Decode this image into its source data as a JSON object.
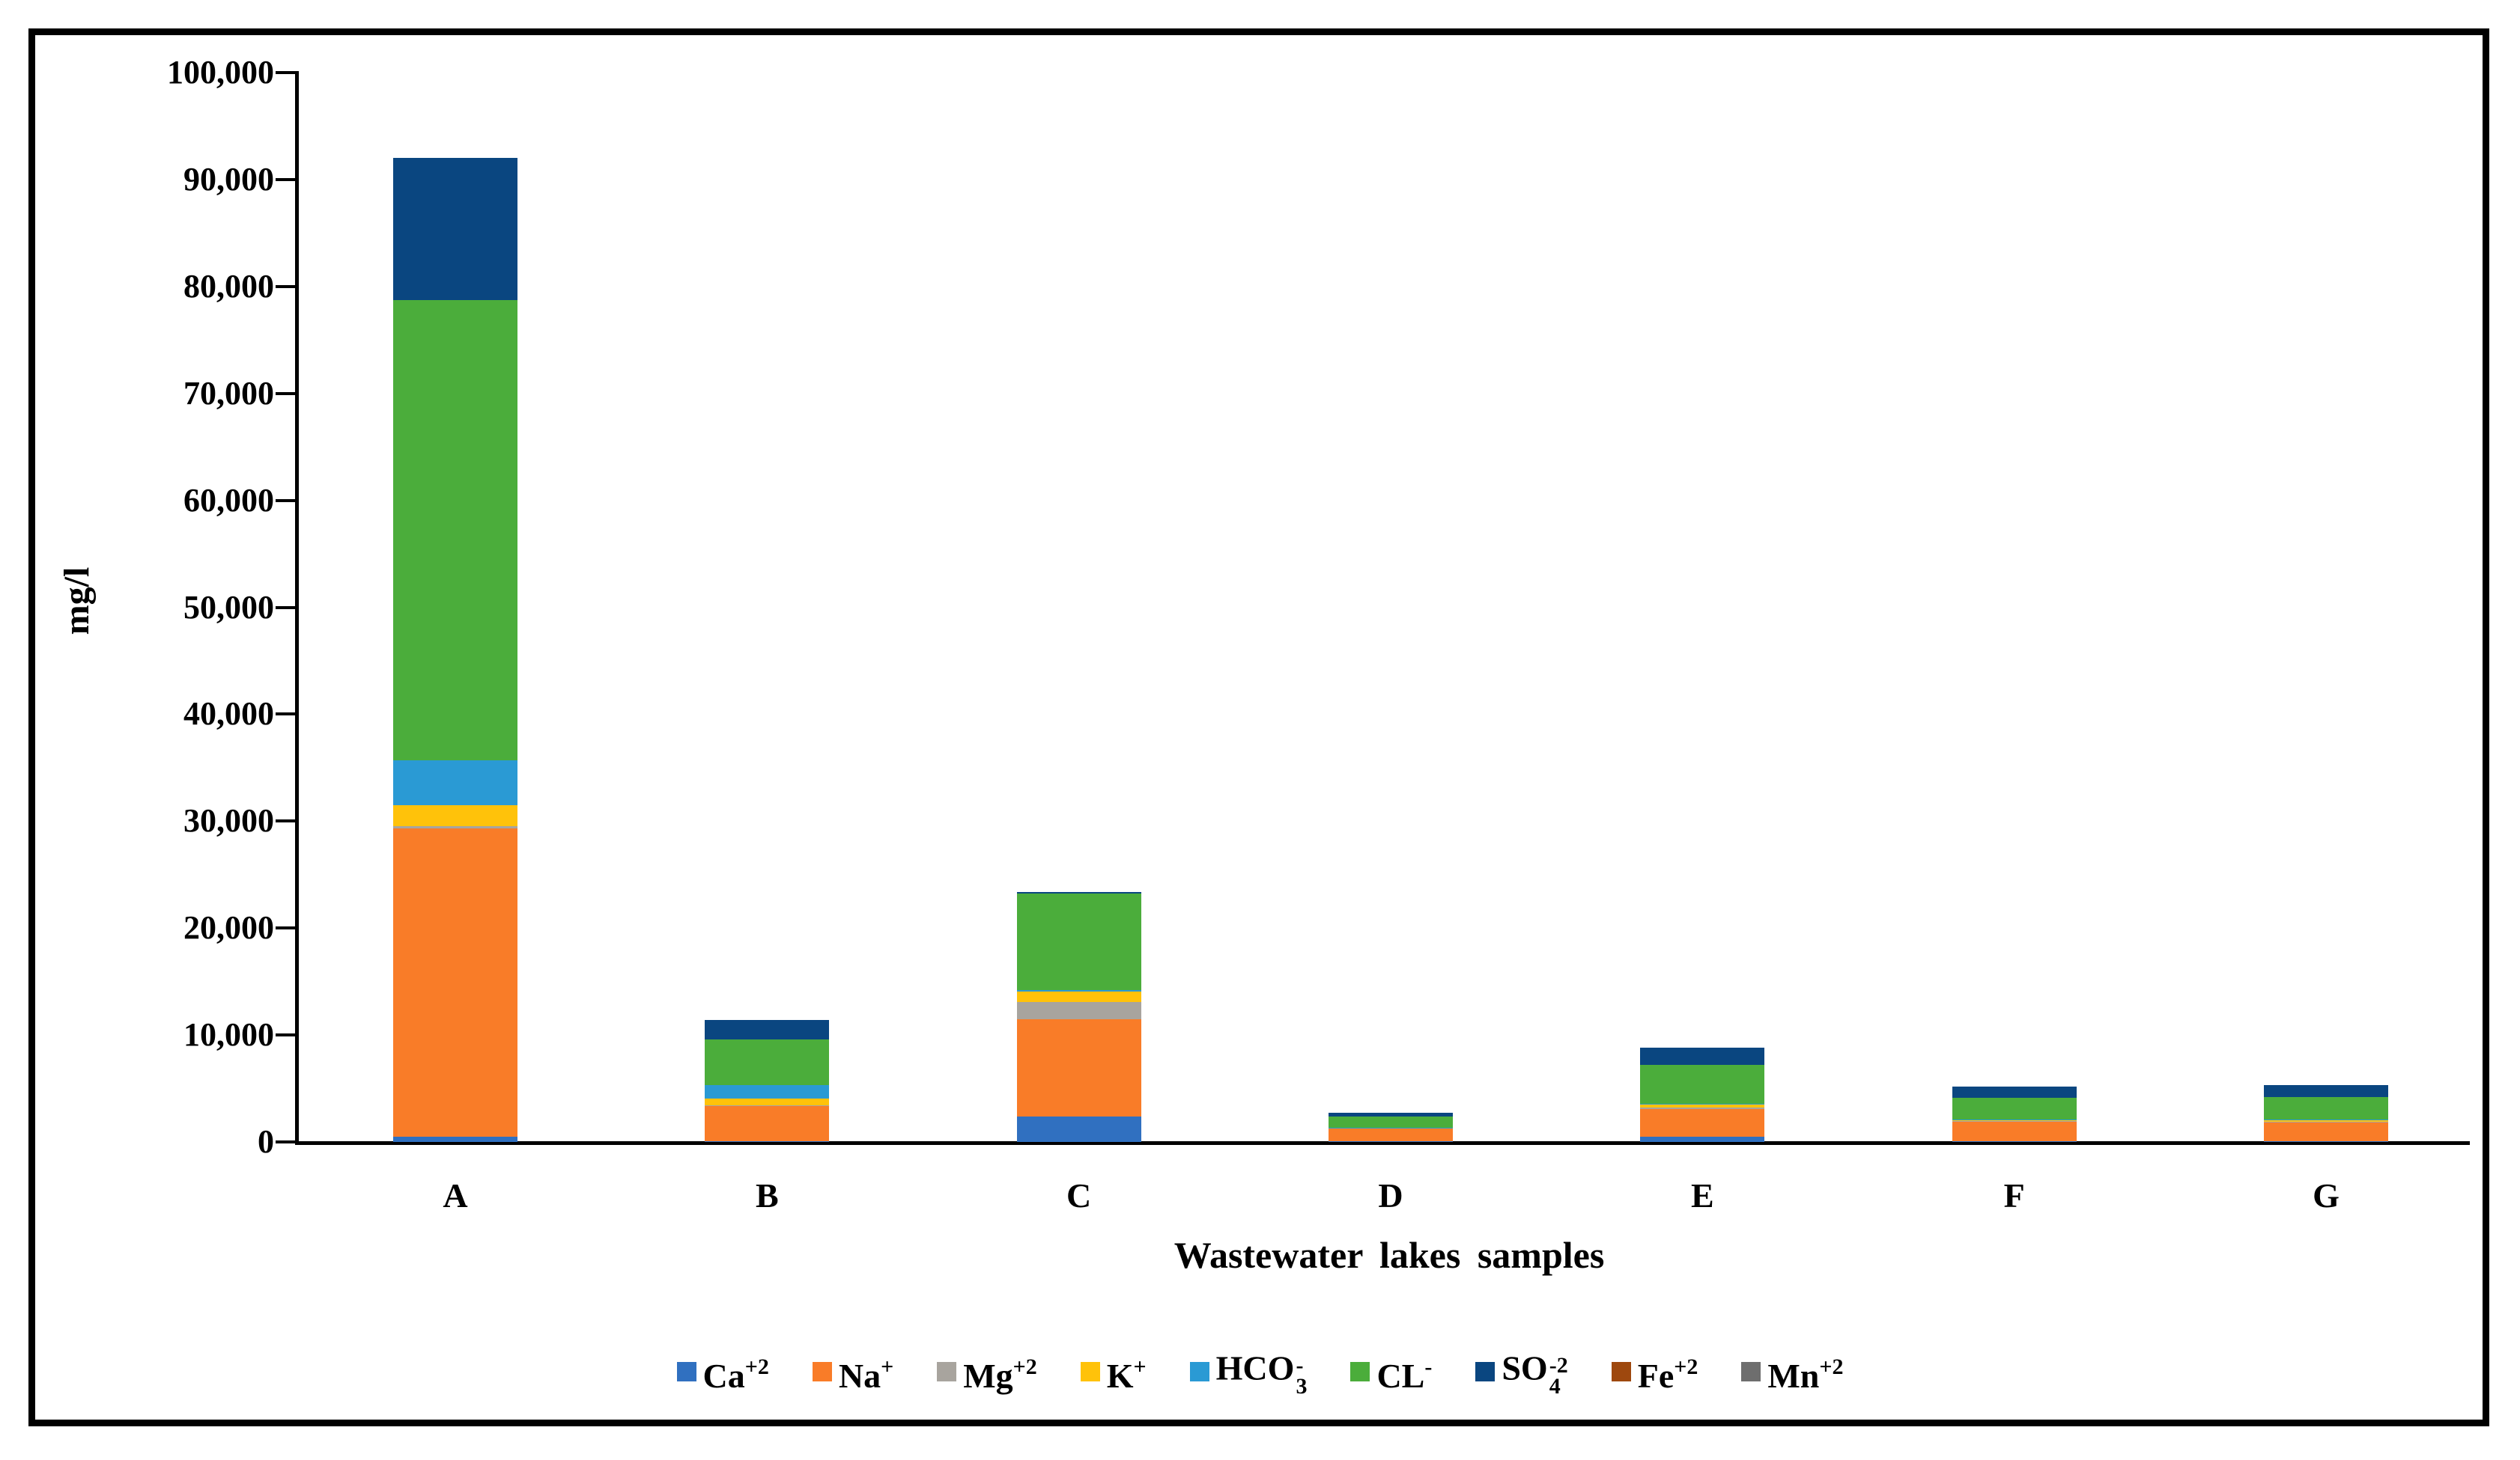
{
  "chart_data": {
    "type": "bar",
    "stacked": true,
    "title": "",
    "xlabel": "Wastewater lakes samples",
    "ylabel": "mg/l",
    "ylim": [
      0,
      100000
    ],
    "grid": false,
    "legend_position": "bottom",
    "yticks": [
      {
        "value": 0,
        "label": "0"
      },
      {
        "value": 10000,
        "label": "10,000"
      },
      {
        "value": 20000,
        "label": "20,000"
      },
      {
        "value": 30000,
        "label": "30,000"
      },
      {
        "value": 40000,
        "label": "40,000"
      },
      {
        "value": 50000,
        "label": "50,000"
      },
      {
        "value": 60000,
        "label": "60,000"
      },
      {
        "value": 70000,
        "label": "70,000"
      },
      {
        "value": 80000,
        "label": "80,000"
      },
      {
        "value": 90000,
        "label": "90,000"
      },
      {
        "value": 100000,
        "label": "100,000"
      }
    ],
    "categories": [
      "A",
      "B",
      "C",
      "D",
      "E",
      "F",
      "G"
    ],
    "series": [
      {
        "name": "Ca+2",
        "label_main": "Ca",
        "label_sup": "+2",
        "label_sub": "",
        "color": "#3070C0",
        "values": [
          500,
          100,
          2400,
          100,
          500,
          100,
          100
        ]
      },
      {
        "name": "Na+",
        "label_main": "Na",
        "label_sup": "+",
        "label_sub": "",
        "color": "#F97C28",
        "values": [
          28800,
          3250,
          9100,
          1150,
          2600,
          1800,
          1750
        ]
      },
      {
        "name": "Mg+2",
        "label_main": "Mg",
        "label_sup": "+2",
        "label_sub": "",
        "color": "#A8A49E",
        "values": [
          200,
          100,
          1600,
          0,
          100,
          50,
          50
        ]
      },
      {
        "name": "K+",
        "label_main": "K",
        "label_sup": "+",
        "label_sub": "",
        "color": "#FFC20A",
        "values": [
          2000,
          600,
          1000,
          50,
          300,
          100,
          100
        ]
      },
      {
        "name": "HCO3-",
        "label_main": "HCO",
        "label_sup": "-",
        "label_sub": "3",
        "color": "#2A9AD4",
        "values": [
          4200,
          1250,
          100,
          50,
          100,
          50,
          100
        ]
      },
      {
        "name": "CL-",
        "label_main": "CL",
        "label_sup": "-",
        "label_sub": "",
        "color": "#4BAD3B",
        "values": [
          43000,
          4300,
          9000,
          1000,
          3600,
          2000,
          2100
        ]
      },
      {
        "name": "SO4-2",
        "label_main": "SO",
        "label_sup": "-2",
        "label_sub": "4",
        "color": "#0A4680",
        "values": [
          13300,
          1800,
          200,
          350,
          1600,
          1100,
          1100
        ]
      },
      {
        "name": "Fe+2",
        "label_main": "Fe",
        "label_sup": "+2",
        "label_sub": "",
        "color": "#9E480E",
        "values": [
          0,
          0,
          0,
          0,
          0,
          0,
          0
        ]
      },
      {
        "name": "Mn+2",
        "label_main": "Mn",
        "label_sup": "+2",
        "label_sub": "",
        "color": "#6E6E6E",
        "values": [
          0,
          0,
          0,
          0,
          0,
          0,
          0
        ]
      }
    ]
  }
}
